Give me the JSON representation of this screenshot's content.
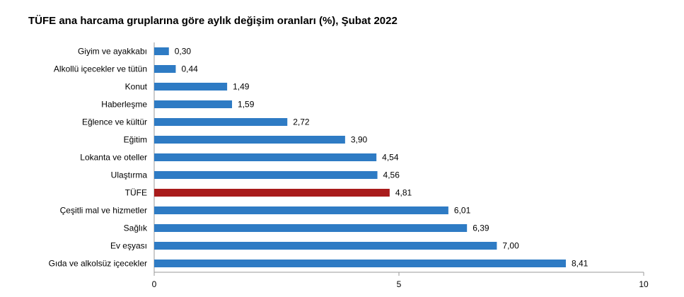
{
  "chart_data": {
    "type": "hbar",
    "title": "TÜFE ana harcama gruplarına göre aylık değişim oranları (%), Şubat 2022",
    "categories": [
      "Giyim ve ayakkabı",
      "Alkollü içecekler ve tütün",
      "Konut",
      "Haberleşme",
      "Eğlence ve kültür",
      "Eğitim",
      "Lokanta ve oteller",
      "Ulaştırma",
      "TÜFE",
      "Çeşitli mal ve hizmetler",
      "Sağlık",
      "Ev eşyası",
      "Gıda ve alkolsüz içecekler"
    ],
    "values": [
      0.3,
      0.44,
      1.49,
      1.59,
      2.72,
      3.9,
      4.54,
      4.56,
      4.81,
      6.01,
      6.39,
      7.0,
      8.41
    ],
    "value_labels": [
      "0,30",
      "0,44",
      "1,49",
      "1,59",
      "2,72",
      "3,90",
      "4,54",
      "4,56",
      "4,81",
      "6,01",
      "6,39",
      "7,00",
      "8,41"
    ],
    "colors": [
      "#2e7bc4",
      "#2e7bc4",
      "#2e7bc4",
      "#2e7bc4",
      "#2e7bc4",
      "#2e7bc4",
      "#2e7bc4",
      "#2e7bc4",
      "#a91b1b",
      "#2e7bc4",
      "#2e7bc4",
      "#2e7bc4",
      "#2e7bc4"
    ],
    "xlim": [
      0,
      10
    ],
    "xticks": [
      0,
      5,
      10
    ]
  }
}
